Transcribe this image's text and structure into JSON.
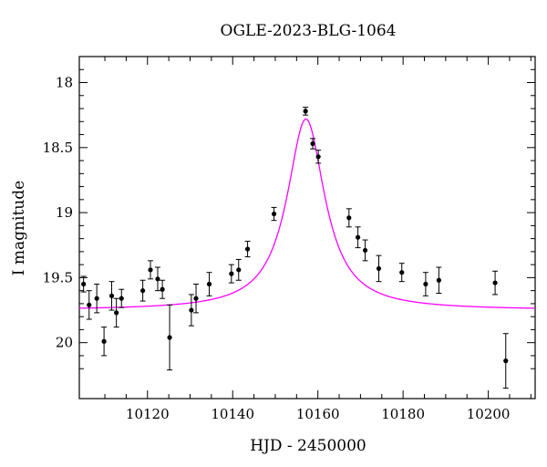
{
  "chart_data": {
    "type": "scatter",
    "title": "OGLE-2023-BLG-1064",
    "xlabel": "HJD - 2450000",
    "ylabel": "I magnitude",
    "xlim": [
      10104,
      10211
    ],
    "ylim": [
      20.43,
      17.8
    ],
    "y_inverted": true,
    "x_ticks": [
      10120,
      10140,
      10160,
      10180,
      10200
    ],
    "x_tick_labels": [
      "10120",
      "10140",
      "10160",
      "10180",
      "10200"
    ],
    "y_ticks": [
      18,
      18.5,
      19,
      19.5,
      20
    ],
    "y_tick_labels": [
      "18",
      "18.5",
      "19",
      "19.5",
      "20"
    ],
    "grid": false,
    "colors": {
      "model": "#ff00ff",
      "points": "#000000",
      "axes": "#000000"
    },
    "series": [
      {
        "type": "errorbar",
        "points": [
          {
            "x": 10105.0,
            "y": 19.55,
            "err": 0.06
          },
          {
            "x": 10106.3,
            "y": 19.71,
            "err": 0.11
          },
          {
            "x": 10108.1,
            "y": 19.66,
            "err": 0.11
          },
          {
            "x": 10109.8,
            "y": 19.99,
            "err": 0.11
          },
          {
            "x": 10111.6,
            "y": 19.64,
            "err": 0.11
          },
          {
            "x": 10112.7,
            "y": 19.77,
            "err": 0.11
          },
          {
            "x": 10113.9,
            "y": 19.66,
            "err": 0.07
          },
          {
            "x": 10118.9,
            "y": 19.6,
            "err": 0.08
          },
          {
            "x": 10120.7,
            "y": 19.44,
            "err": 0.07
          },
          {
            "x": 10122.4,
            "y": 19.51,
            "err": 0.09
          },
          {
            "x": 10123.5,
            "y": 19.59,
            "err": 0.07
          },
          {
            "x": 10125.2,
            "y": 19.96,
            "err": 0.25
          },
          {
            "x": 10130.3,
            "y": 19.75,
            "err": 0.12
          },
          {
            "x": 10131.4,
            "y": 19.66,
            "err": 0.11
          },
          {
            "x": 10134.5,
            "y": 19.55,
            "err": 0.09
          },
          {
            "x": 10139.7,
            "y": 19.47,
            "err": 0.07
          },
          {
            "x": 10141.4,
            "y": 19.44,
            "err": 0.08
          },
          {
            "x": 10143.5,
            "y": 19.28,
            "err": 0.06
          },
          {
            "x": 10149.7,
            "y": 19.01,
            "err": 0.05
          },
          {
            "x": 10157.1,
            "y": 18.22,
            "err": 0.03
          },
          {
            "x": 10158.8,
            "y": 18.47,
            "err": 0.04
          },
          {
            "x": 10160.1,
            "y": 18.57,
            "err": 0.05
          },
          {
            "x": 10167.3,
            "y": 19.04,
            "err": 0.07
          },
          {
            "x": 10169.4,
            "y": 19.19,
            "err": 0.08
          },
          {
            "x": 10171.1,
            "y": 19.29,
            "err": 0.08
          },
          {
            "x": 10174.3,
            "y": 19.43,
            "err": 0.1
          },
          {
            "x": 10179.7,
            "y": 19.46,
            "err": 0.07
          },
          {
            "x": 10185.3,
            "y": 19.55,
            "err": 0.09
          },
          {
            "x": 10188.4,
            "y": 19.52,
            "err": 0.1
          },
          {
            "x": 10201.6,
            "y": 19.54,
            "err": 0.09
          },
          {
            "x": 10204.1,
            "y": 20.14,
            "err": 0.21
          }
        ]
      },
      {
        "type": "model-curve",
        "model": {
          "t0": 10157.2,
          "mag_peak": 18.28,
          "mag_base": 19.75,
          "width": 5.4
        }
      }
    ]
  }
}
